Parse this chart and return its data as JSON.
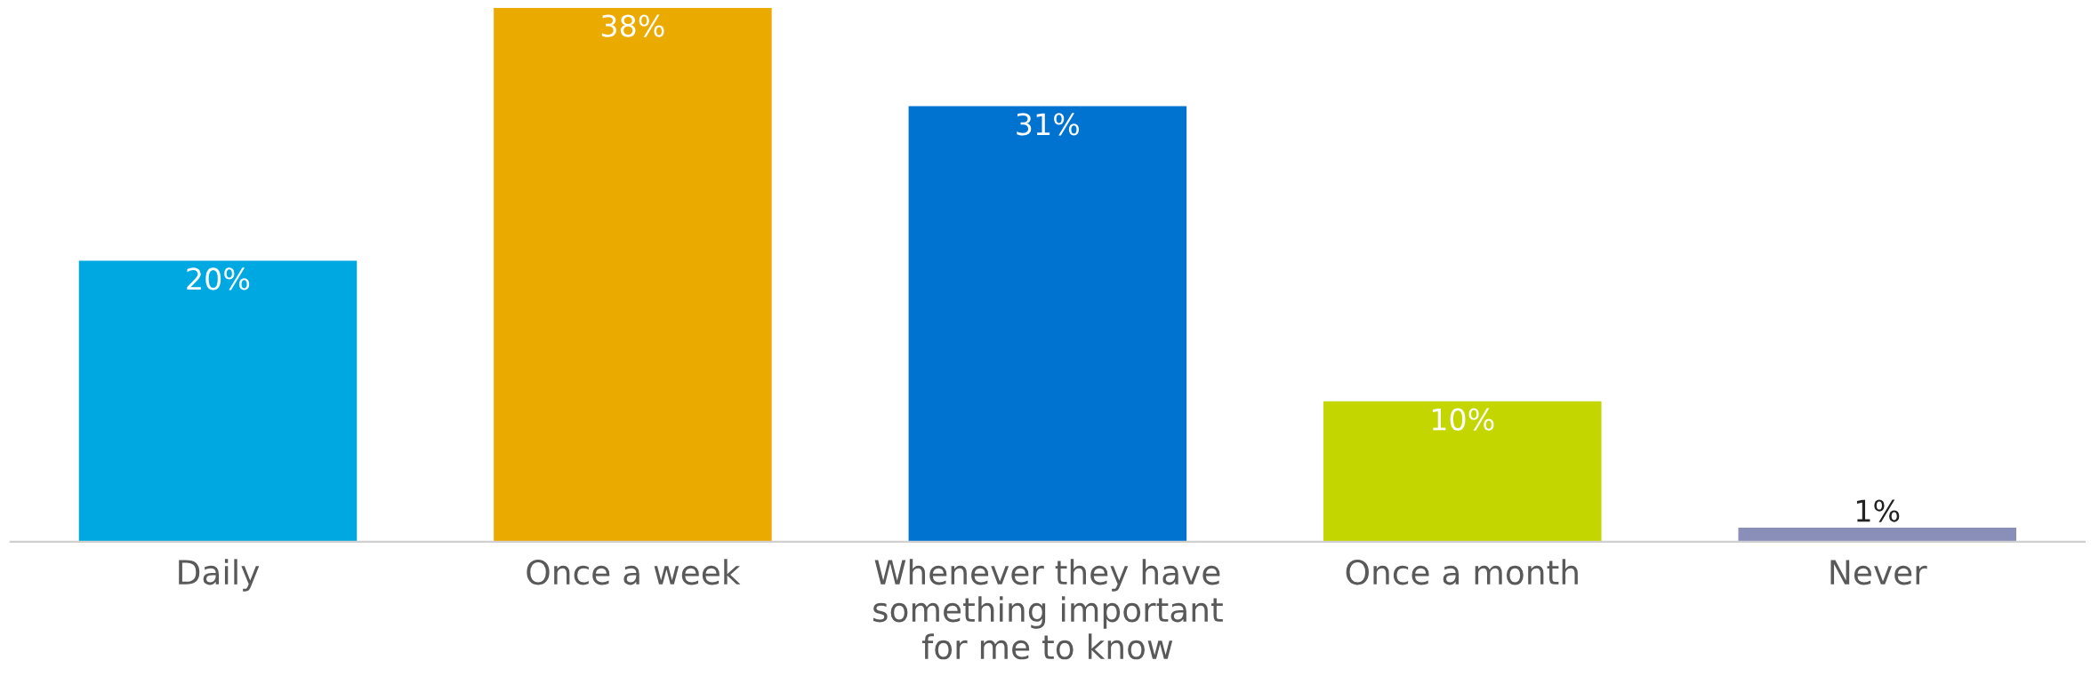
{
  "chart_data": {
    "type": "bar",
    "categories": [
      "Daily",
      "Once a week",
      "Whenever they have\nsomething important\nfor me to know",
      "Once a month",
      "Never"
    ],
    "values": [
      20,
      38,
      31,
      10,
      1
    ],
    "colors": [
      "#00a8e1",
      "#ebaa00",
      "#0072d0",
      "#c4d600",
      "#8a8fba"
    ],
    "value_labels": [
      "20%",
      "38%",
      "31%",
      "10%",
      "1%"
    ],
    "grid": false,
    "legend": false,
    "tick_labels": "x"
  }
}
